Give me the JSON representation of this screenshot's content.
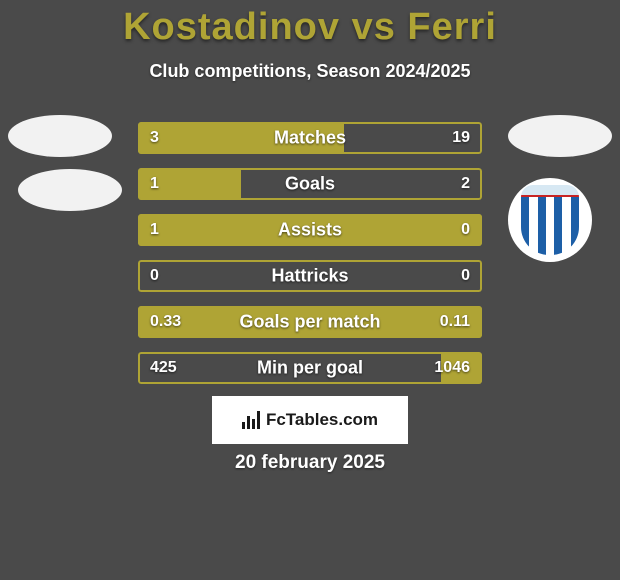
{
  "colors": {
    "background": "#4a4a4a",
    "title": "#afa435",
    "text_white": "#ffffff",
    "avatar": "#f2f2f2",
    "bar_fill": "#afa435",
    "bar_border": "#afa435",
    "badge_bg": "#ffffff",
    "badge_text": "#1a1a1a",
    "logo_bg": "#ffffff",
    "logo_top": "#d7e8f3",
    "logo_red": "#c82424",
    "logo_blue": "#1d5fa7",
    "logo_white": "#ffffff"
  },
  "title": "Kostadinov vs Ferri",
  "subtitle": "Club competitions, Season 2024/2025",
  "date": "20 february 2025",
  "site": "FcTables.com",
  "bars": [
    {
      "label": "Matches",
      "left": "3",
      "right": "19",
      "left_pct": 60,
      "right_pct": 0
    },
    {
      "label": "Goals",
      "left": "1",
      "right": "2",
      "left_pct": 30,
      "right_pct": 0
    },
    {
      "label": "Assists",
      "left": "1",
      "right": "0",
      "left_pct": 100,
      "right_pct": 0
    },
    {
      "label": "Hattricks",
      "left": "0",
      "right": "0",
      "left_pct": 0,
      "right_pct": 0
    },
    {
      "label": "Goals per match",
      "left": "0.33",
      "right": "0.11",
      "left_pct": 100,
      "right_pct": 0
    },
    {
      "label": "Min per goal",
      "left": "425",
      "right": "1046",
      "left_pct": 0,
      "right_pct": 12
    }
  ]
}
